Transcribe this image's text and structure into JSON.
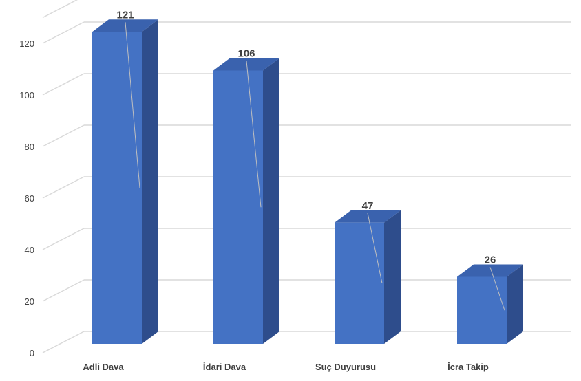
{
  "chart_data": {
    "type": "bar",
    "categories": [
      "Adli Dava",
      "İdari Dava",
      "Suç Duyurusu",
      "İcra Takip"
    ],
    "values": [
      121,
      106,
      47,
      26
    ],
    "data_labels": [
      "121",
      "106",
      "47",
      "26"
    ],
    "ylim": [
      0,
      130
    ],
    "yticks": [
      "0",
      "20",
      "40",
      "60",
      "80",
      "100",
      "120"
    ],
    "ytick_values": [
      0,
      20,
      40,
      60,
      80,
      100,
      120
    ],
    "grid": true,
    "legend": "none",
    "colors": {
      "bar_front": "#4472C4",
      "bar_side": "#2E4D8C",
      "bar_top": "#3A62AE",
      "grid": "#D9D9D9",
      "text": "#404040"
    }
  }
}
